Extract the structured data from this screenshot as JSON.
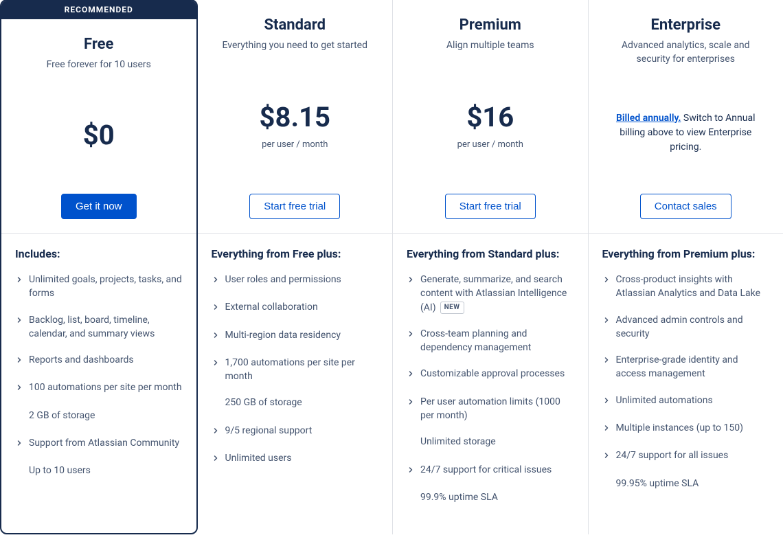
{
  "colors": {
    "brand_dark": "#172b4d",
    "primary_blue": "#0052cc",
    "border": "#dfe1e6",
    "text_muted": "#44546f",
    "white": "#ffffff"
  },
  "recommended_label": "RECOMMENDED",
  "new_badge": "NEW",
  "plans": [
    {
      "name": "Free",
      "tagline": "Free forever for 10 users",
      "price": "$0",
      "price_sub": "",
      "cta_label": "Get it now",
      "cta_style": "primary",
      "recommended": true,
      "enterprise_note": null,
      "features_title": "Includes:",
      "features": [
        {
          "text": "Unlimited goals, projects, tasks, and forms",
          "chevron": true
        },
        {
          "text": "Backlog, list, board, timeline, calendar, and summary views",
          "chevron": true
        },
        {
          "text": "Reports and dashboards",
          "chevron": true
        },
        {
          "text": "100 automations per site per month",
          "chevron": true
        },
        {
          "text": "2 GB of storage",
          "chevron": false
        },
        {
          "text": "Support from Atlassian Community",
          "chevron": true
        },
        {
          "text": "Up to 10 users",
          "chevron": false
        }
      ]
    },
    {
      "name": "Standard",
      "tagline": "Everything you need to get started",
      "price": "$8.15",
      "price_sub": "per user / month",
      "cta_label": "Start free trial",
      "cta_style": "outline",
      "recommended": false,
      "enterprise_note": null,
      "features_title": "Everything from Free plus:",
      "features": [
        {
          "text": "User roles and permissions",
          "chevron": true
        },
        {
          "text": "External collaboration",
          "chevron": true
        },
        {
          "text": "Multi-region data residency",
          "chevron": true
        },
        {
          "text": "1,700 automations per site per month",
          "chevron": true
        },
        {
          "text": "250 GB of storage",
          "chevron": false
        },
        {
          "text": "9/5 regional support",
          "chevron": true
        },
        {
          "text": "Unlimited users",
          "chevron": true
        }
      ]
    },
    {
      "name": "Premium",
      "tagline": "Align multiple teams",
      "price": "$16",
      "price_sub": "per user / month",
      "cta_label": "Start free trial",
      "cta_style": "outline",
      "recommended": false,
      "enterprise_note": null,
      "features_title": "Everything from Standard plus:",
      "features": [
        {
          "text": "Generate, summarize, and search content with Atlassian Intelligence (AI)",
          "chevron": true,
          "new": true
        },
        {
          "text": "Cross-team planning and dependency management",
          "chevron": true
        },
        {
          "text": "Customizable approval processes",
          "chevron": true
        },
        {
          "text": "Per user automation limits (1000 per month)",
          "chevron": true
        },
        {
          "text": "Unlimited storage",
          "chevron": false
        },
        {
          "text": "24/7 support for critical issues",
          "chevron": true
        },
        {
          "text": "99.9% uptime SLA",
          "chevron": false
        }
      ]
    },
    {
      "name": "Enterprise",
      "tagline": "Advanced analytics, scale and security for enterprises",
      "price": "",
      "price_sub": "",
      "cta_label": "Contact sales",
      "cta_style": "outline",
      "recommended": false,
      "enterprise_note": {
        "link": "Billed annually.",
        "rest": " Switch to Annual billing above to view Enterprise pricing."
      },
      "features_title": "Everything from Premium plus:",
      "features": [
        {
          "text": "Cross-product insights with Atlassian Analytics and Data Lake",
          "chevron": true
        },
        {
          "text": "Advanced admin controls and security",
          "chevron": true
        },
        {
          "text": "Enterprise-grade identity and access management",
          "chevron": true
        },
        {
          "text": "Unlimited automations",
          "chevron": true
        },
        {
          "text": "Multiple instances (up to 150)",
          "chevron": true
        },
        {
          "text": "24/7 support for all issues",
          "chevron": true
        },
        {
          "text": "99.95% uptime SLA",
          "chevron": false
        }
      ]
    }
  ]
}
